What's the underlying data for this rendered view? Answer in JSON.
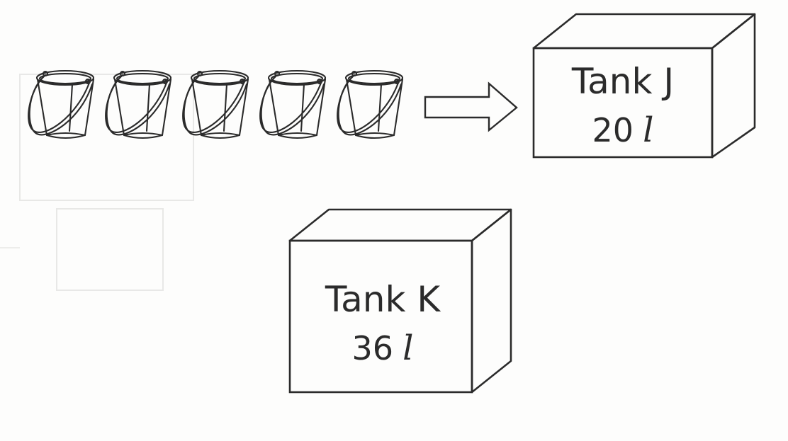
{
  "buckets": {
    "count": 5,
    "icon": "bucket-icon"
  },
  "arrow": {
    "icon": "right-arrow-icon"
  },
  "tank_j": {
    "name": "Tank J",
    "capacity": "20",
    "unit": "l"
  },
  "tank_k": {
    "name": "Tank K",
    "capacity": "36",
    "unit": "l"
  },
  "colors": {
    "line": "#2b2b2b",
    "background": "#fdfdfc",
    "bleed_through": "#e4e4e2"
  }
}
